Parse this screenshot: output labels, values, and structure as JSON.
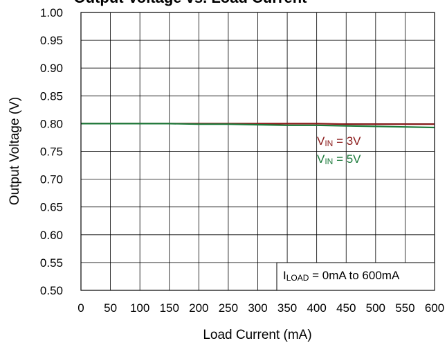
{
  "chart_data": {
    "type": "line",
    "title": "Output Voltage vs. Load Current",
    "xlabel": "Load Current (mA)",
    "ylabel": "Output Voltage (V)",
    "xlim": [
      0,
      600
    ],
    "ylim": [
      0.5,
      1.0
    ],
    "x_ticks": [
      "0",
      "50",
      "100",
      "150",
      "200",
      "250",
      "300",
      "350",
      "400",
      "450",
      "500",
      "550",
      "600"
    ],
    "y_ticks": [
      "1.00",
      "0.95",
      "0.90",
      "0.85",
      "0.80",
      "0.75",
      "0.70",
      "0.65",
      "0.60",
      "0.55",
      "0.50"
    ],
    "grid": true,
    "series": [
      {
        "label_main": "V",
        "label_sub": "IN",
        "label_rest": " = 3V",
        "color": "#8b1a1a",
        "x": [
          0,
          50,
          100,
          150,
          200,
          250,
          300,
          350,
          400,
          450,
          500,
          550,
          600
        ],
        "y": [
          0.8,
          0.8,
          0.8,
          0.8,
          0.8,
          0.8,
          0.8,
          0.8,
          0.8,
          0.799,
          0.799,
          0.799,
          0.799
        ]
      },
      {
        "label_main": "V",
        "label_sub": "IN",
        "label_rest": " = 5V",
        "color": "#1b7a3a",
        "x": [
          0,
          50,
          100,
          150,
          200,
          250,
          300,
          350,
          400,
          450,
          500,
          550,
          600
        ],
        "y": [
          0.8,
          0.8,
          0.8,
          0.8,
          0.799,
          0.799,
          0.798,
          0.797,
          0.797,
          0.796,
          0.795,
          0.794,
          0.793
        ]
      }
    ],
    "condition_box": {
      "main": "I",
      "sub": "LOAD",
      "rest": " = 0mA to 600mA"
    }
  }
}
